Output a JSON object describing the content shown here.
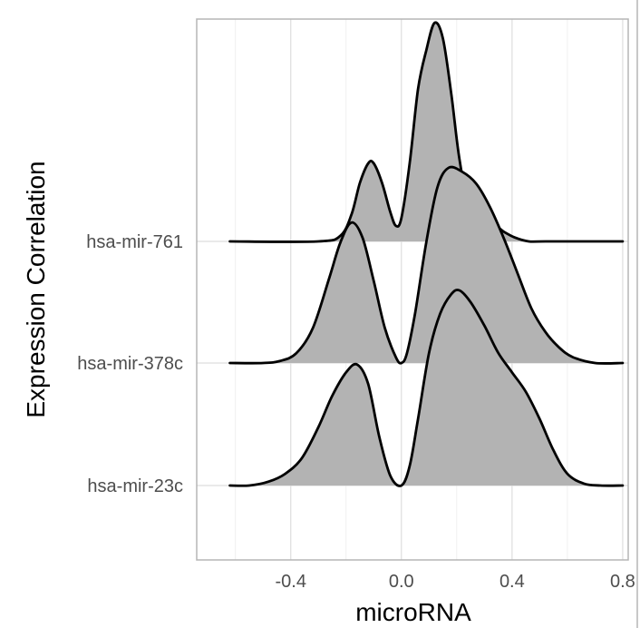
{
  "chart_data": {
    "type": "ridgeline",
    "xlabel": "microRNA",
    "ylabel": "Expression Correlation",
    "xlim": [
      -0.74,
      0.82
    ],
    "x_ticks": [
      -0.4,
      0.0,
      0.4,
      0.8
    ],
    "x_tick_labels": [
      "-0.4",
      "0.0",
      "0.4",
      "0.8"
    ],
    "grid": true,
    "fill_color": "#b3b3b3",
    "line_color": "#000000",
    "series": [
      {
        "name": "hsa-mir-23c",
        "x": [
          -0.62,
          -0.55,
          -0.48,
          -0.42,
          -0.36,
          -0.3,
          -0.25,
          -0.2,
          -0.16,
          -0.12,
          -0.08,
          -0.04,
          0.0,
          0.03,
          0.06,
          0.1,
          0.14,
          0.18,
          0.21,
          0.25,
          0.3,
          0.35,
          0.4,
          0.45,
          0.5,
          0.55,
          0.6,
          0.66,
          0.72,
          0.8
        ],
        "density": [
          0.0,
          0.0,
          0.02,
          0.06,
          0.14,
          0.3,
          0.46,
          0.58,
          0.62,
          0.52,
          0.25,
          0.05,
          0.0,
          0.1,
          0.34,
          0.68,
          0.88,
          0.98,
          1.0,
          0.94,
          0.82,
          0.68,
          0.58,
          0.48,
          0.34,
          0.18,
          0.06,
          0.01,
          0.0,
          0.0
        ]
      },
      {
        "name": "hsa-mir-378c",
        "x": [
          -0.62,
          -0.5,
          -0.44,
          -0.38,
          -0.32,
          -0.26,
          -0.22,
          -0.18,
          -0.14,
          -0.1,
          -0.06,
          -0.02,
          0.0,
          0.02,
          0.05,
          0.09,
          0.13,
          0.17,
          0.22,
          0.27,
          0.32,
          0.37,
          0.42,
          0.47,
          0.52,
          0.57,
          0.62,
          0.7,
          0.8
        ],
        "density": [
          0.0,
          0.0,
          0.01,
          0.05,
          0.18,
          0.44,
          0.62,
          0.72,
          0.64,
          0.42,
          0.18,
          0.03,
          0.0,
          0.05,
          0.26,
          0.62,
          0.9,
          1.0,
          0.98,
          0.92,
          0.8,
          0.64,
          0.46,
          0.28,
          0.16,
          0.08,
          0.03,
          0.0,
          0.0
        ]
      },
      {
        "name": "hsa-mir-761",
        "x": [
          -0.62,
          -0.3,
          -0.22,
          -0.18,
          -0.15,
          -0.12,
          -0.1,
          -0.07,
          -0.04,
          -0.02,
          0.0,
          0.03,
          0.06,
          0.09,
          0.12,
          0.15,
          0.18,
          0.21,
          0.25,
          0.3,
          0.34,
          0.37,
          0.41,
          0.46,
          0.52,
          0.8
        ],
        "density": [
          0.0,
          0.0,
          0.03,
          0.14,
          0.3,
          0.4,
          0.4,
          0.3,
          0.15,
          0.08,
          0.12,
          0.4,
          0.78,
          0.98,
          1.12,
          1.04,
          0.76,
          0.42,
          0.14,
          0.08,
          0.08,
          0.05,
          0.02,
          0.0,
          0.0,
          0.0
        ]
      }
    ]
  }
}
